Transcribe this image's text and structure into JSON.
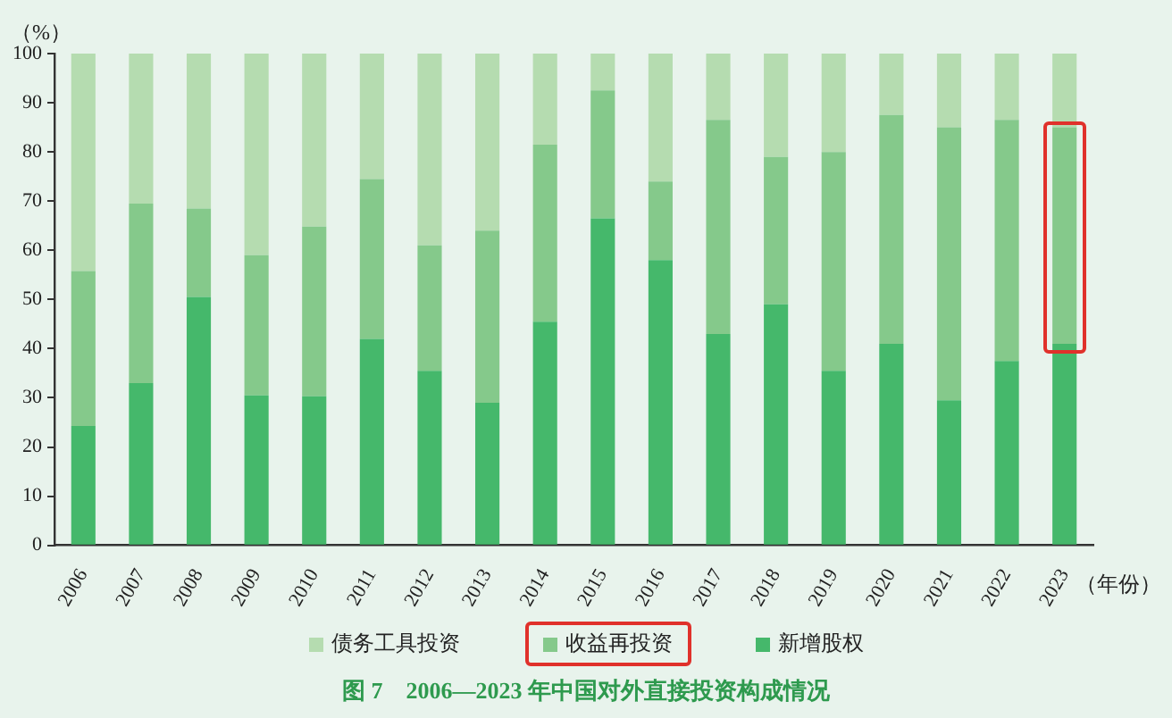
{
  "chart_data": {
    "type": "bar",
    "title": "图 7　2006—2023 年中国对外直接投资构成情况",
    "ylabel": "（%）",
    "xlabel": "（年份）",
    "categories": [
      "2006",
      "2007",
      "2008",
      "2009",
      "2010",
      "2011",
      "2012",
      "2013",
      "2014",
      "2015",
      "2016",
      "2017",
      "2018",
      "2019",
      "2020",
      "2021",
      "2022",
      "2023"
    ],
    "stacked": true,
    "series": [
      {
        "name": "新增股权",
        "color": "#45b86b",
        "values": [
          24.3,
          33,
          50.5,
          30.5,
          30.3,
          42,
          35.5,
          29,
          45.5,
          66.5,
          58,
          43,
          49,
          35.5,
          41,
          29.5,
          37.5,
          41
        ]
      },
      {
        "name": "收益再投资",
        "color": "#85c98b",
        "values": [
          31.5,
          36.5,
          18,
          28.5,
          34.5,
          32.5,
          25.5,
          35,
          36,
          26,
          16,
          43.5,
          30,
          44.5,
          46.5,
          55.5,
          49,
          44
        ]
      },
      {
        "name": "债务工具投资",
        "color": "#b5dcb0",
        "values": [
          44.2,
          30.5,
          31.5,
          41,
          35.2,
          25.5,
          39,
          36,
          18.5,
          7.5,
          26,
          13.5,
          21,
          20,
          12.5,
          15,
          13.5,
          15
        ]
      }
    ],
    "ylim": [
      0,
      100
    ],
    "yticks": [
      0,
      10,
      20,
      30,
      40,
      50,
      60,
      70,
      80,
      90,
      100
    ],
    "grid": false,
    "legend": "bottom"
  }
}
